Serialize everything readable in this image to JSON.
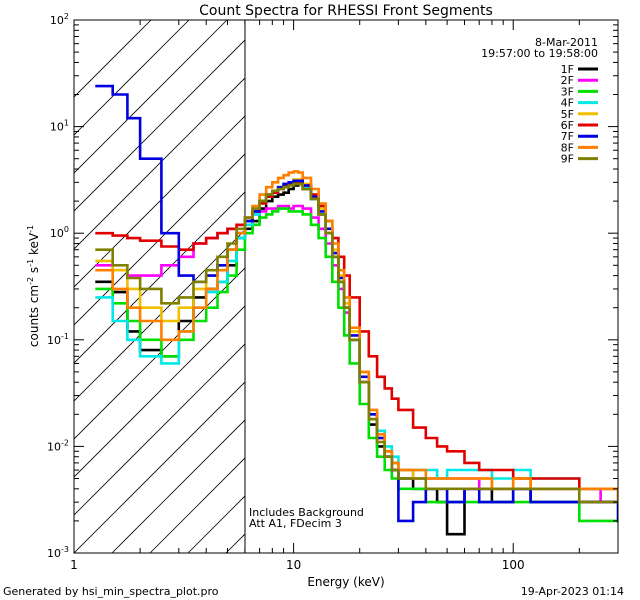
{
  "chart_data": {
    "type": "line",
    "title": "Count Spectra for RHESSI Front Segments",
    "xlabel": "Energy (keV)",
    "ylabel_parts": {
      "base": "counts cm",
      "exp1": "-2",
      "mid1": " s",
      "exp2": "-1",
      "mid2": " keV",
      "exp3": "-1"
    },
    "xscale": "log",
    "yscale": "log",
    "xlim": [
      1,
      300
    ],
    "ylim": [
      0.001,
      100
    ],
    "x_ticks": [
      {
        "value": 1,
        "label": "1"
      },
      {
        "value": 10,
        "label": "10"
      },
      {
        "value": 100,
        "label": "100"
      }
    ],
    "y_ticks": [
      {
        "value": 100,
        "base": "10",
        "exp": "2"
      },
      {
        "value": 10,
        "base": "10",
        "exp": "1"
      },
      {
        "value": 1,
        "base": "10",
        "exp": "0"
      },
      {
        "value": 0.1,
        "base": "10",
        "exp": "-1"
      },
      {
        "value": 0.01,
        "base": "10",
        "exp": "-2"
      },
      {
        "value": 0.001,
        "base": "10",
        "exp": "-3"
      }
    ],
    "legend": {
      "placement": "top-right",
      "date": "8-Mar-2011",
      "time_range": "19:57:00 to 19:58:00"
    },
    "annotations": {
      "line1": "Includes Background",
      "line2": "Att A1, FDecim  3"
    },
    "hatched_region": {
      "xmin": 1,
      "xmax": 6,
      "label": "excluded low-energy region"
    },
    "series": [
      {
        "name": "1F",
        "color": "#000000",
        "x": [
          1.25,
          1.5,
          1.75,
          2.0,
          2.5,
          3.0,
          3.5,
          4.0,
          4.5,
          5.0,
          5.5,
          6.0,
          6.5,
          7.0,
          7.5,
          8.0,
          8.5,
          9.0,
          9.5,
          10.0,
          10.5,
          11.0,
          12.0,
          13.0,
          14.0,
          15.0,
          16.0,
          17.0,
          18.0,
          20.0,
          22.0,
          24.0,
          26.0,
          28.0,
          30.0,
          35.0,
          40.0,
          45.0,
          50.0,
          60.0,
          70.0,
          80.0,
          100.0,
          120.0,
          150.0,
          200.0,
          250.0,
          300.0
        ],
        "values": [
          0.35,
          0.28,
          0.12,
          0.08,
          0.07,
          0.15,
          0.25,
          0.3,
          0.35,
          0.5,
          0.9,
          1.1,
          1.3,
          1.7,
          2.0,
          2.2,
          2.3,
          2.4,
          2.6,
          2.8,
          2.9,
          2.6,
          2.1,
          1.5,
          1.0,
          0.6,
          0.35,
          0.2,
          0.1,
          0.04,
          0.016,
          0.01,
          0.008,
          0.006,
          0.005,
          0.004,
          0.004,
          0.003,
          0.0015,
          0.004,
          0.004,
          0.003,
          0.004,
          0.003,
          0.003,
          0.003,
          0.003,
          0.003
        ]
      },
      {
        "name": "2F",
        "color": "#ff00ff",
        "x": [
          1.25,
          1.5,
          1.75,
          2.0,
          2.5,
          3.0,
          3.5,
          4.0,
          4.5,
          5.0,
          5.5,
          6.0,
          6.5,
          7.0,
          7.5,
          8.0,
          8.5,
          9.0,
          9.5,
          10.0,
          10.5,
          11.0,
          12.0,
          13.0,
          14.0,
          15.0,
          16.0,
          17.0,
          18.0,
          20.0,
          22.0,
          24.0,
          26.0,
          28.0,
          30.0,
          35.0,
          40.0,
          45.0,
          50.0,
          60.0,
          70.0,
          80.0,
          100.0,
          120.0,
          150.0,
          200.0,
          250.0,
          300.0
        ],
        "values": [
          0.5,
          0.45,
          0.4,
          0.4,
          0.5,
          0.6,
          0.8,
          0.9,
          1.0,
          1.1,
          1.2,
          1.3,
          1.5,
          1.6,
          1.7,
          1.7,
          1.8,
          1.8,
          1.7,
          1.8,
          1.8,
          1.7,
          1.4,
          1.1,
          0.8,
          0.5,
          0.3,
          0.18,
          0.1,
          0.04,
          0.018,
          0.012,
          0.009,
          0.007,
          0.006,
          0.005,
          0.005,
          0.005,
          0.005,
          0.005,
          0.004,
          0.004,
          0.004,
          0.004,
          0.004,
          0.004,
          0.003,
          0.003
        ]
      },
      {
        "name": "3F",
        "color": "#00e000",
        "x": [
          1.25,
          1.5,
          1.75,
          2.0,
          2.5,
          3.0,
          3.5,
          4.0,
          4.5,
          5.0,
          5.5,
          6.0,
          6.5,
          7.0,
          7.5,
          8.0,
          8.5,
          9.0,
          9.5,
          10.0,
          10.5,
          11.0,
          12.0,
          13.0,
          14.0,
          15.0,
          16.0,
          17.0,
          18.0,
          20.0,
          22.0,
          24.0,
          26.0,
          28.0,
          30.0,
          35.0,
          40.0,
          45.0,
          50.0,
          60.0,
          70.0,
          80.0,
          100.0,
          120.0,
          150.0,
          200.0,
          250.0,
          300.0
        ],
        "values": [
          0.3,
          0.22,
          0.15,
          0.1,
          0.07,
          0.1,
          0.15,
          0.2,
          0.28,
          0.4,
          0.7,
          1.0,
          1.2,
          1.4,
          1.5,
          1.6,
          1.7,
          1.7,
          1.6,
          1.6,
          1.6,
          1.5,
          1.2,
          0.9,
          0.6,
          0.35,
          0.2,
          0.11,
          0.06,
          0.025,
          0.012,
          0.008,
          0.006,
          0.005,
          0.004,
          0.004,
          0.003,
          0.003,
          0.003,
          0.003,
          0.003,
          0.003,
          0.003,
          0.003,
          0.003,
          0.002,
          0.002,
          0.002
        ]
      },
      {
        "name": "4F",
        "color": "#00e8e8",
        "x": [
          1.25,
          1.5,
          1.75,
          2.0,
          2.5,
          3.0,
          3.5,
          4.0,
          4.5,
          5.0,
          5.5,
          6.0,
          6.5,
          7.0,
          7.5,
          8.0,
          8.5,
          9.0,
          9.5,
          10.0,
          10.5,
          11.0,
          12.0,
          13.0,
          14.0,
          15.0,
          16.0,
          17.0,
          18.0,
          20.0,
          22.0,
          24.0,
          26.0,
          28.0,
          30.0,
          35.0,
          40.0,
          45.0,
          50.0,
          60.0,
          70.0,
          80.0,
          100.0,
          120.0,
          150.0,
          200.0,
          250.0,
          300.0
        ],
        "values": [
          0.25,
          0.15,
          0.1,
          0.07,
          0.06,
          0.12,
          0.2,
          0.28,
          0.35,
          0.55,
          0.9,
          1.2,
          1.5,
          1.9,
          2.2,
          2.4,
          2.6,
          2.8,
          2.9,
          3.0,
          3.0,
          2.7,
          2.1,
          1.5,
          1.0,
          0.6,
          0.35,
          0.2,
          0.1,
          0.04,
          0.02,
          0.014,
          0.01,
          0.008,
          0.006,
          0.006,
          0.006,
          0.005,
          0.006,
          0.006,
          0.006,
          0.005,
          0.006,
          0.005,
          0.005,
          0.004,
          0.004,
          0.004
        ]
      },
      {
        "name": "5F",
        "color": "#f0c000",
        "x": [
          1.25,
          1.5,
          1.75,
          2.0,
          2.5,
          3.0,
          3.5,
          4.0,
          4.5,
          5.0,
          5.5,
          6.0,
          6.5,
          7.0,
          7.5,
          8.0,
          8.5,
          9.0,
          9.5,
          10.0,
          10.5,
          11.0,
          12.0,
          13.0,
          14.0,
          15.0,
          16.0,
          17.0,
          18.0,
          20.0,
          22.0,
          24.0,
          26.0,
          28.0,
          30.0,
          35.0,
          40.0,
          45.0,
          50.0,
          60.0,
          70.0,
          80.0,
          100.0,
          120.0,
          150.0,
          200.0,
          250.0,
          300.0
        ],
        "values": [
          0.55,
          0.45,
          0.3,
          0.2,
          0.15,
          0.2,
          0.3,
          0.4,
          0.5,
          0.7,
          1.0,
          1.3,
          1.6,
          2.0,
          2.3,
          2.5,
          2.7,
          2.9,
          3.0,
          3.2,
          3.2,
          2.9,
          2.3,
          1.7,
          1.1,
          0.7,
          0.4,
          0.22,
          0.12,
          0.05,
          0.02,
          0.012,
          0.009,
          0.007,
          0.006,
          0.005,
          0.005,
          0.005,
          0.005,
          0.005,
          0.005,
          0.004,
          0.005,
          0.004,
          0.004,
          0.004,
          0.004,
          0.003
        ]
      },
      {
        "name": "6F",
        "color": "#e00000",
        "x": [
          1.25,
          1.5,
          1.75,
          2.0,
          2.5,
          3.0,
          3.5,
          4.0,
          4.5,
          5.0,
          5.5,
          6.0,
          6.5,
          7.0,
          7.5,
          8.0,
          8.5,
          9.0,
          9.5,
          10.0,
          10.5,
          11.0,
          12.0,
          13.0,
          14.0,
          15.0,
          16.0,
          17.0,
          18.0,
          20.0,
          22.0,
          24.0,
          26.0,
          28.0,
          30.0,
          35.0,
          40.0,
          45.0,
          50.0,
          60.0,
          70.0,
          80.0,
          100.0,
          120.0,
          150.0,
          200.0,
          250.0,
          300.0
        ],
        "values": [
          1.0,
          0.95,
          0.9,
          0.85,
          0.75,
          0.7,
          0.8,
          0.9,
          1.0,
          1.1,
          1.2,
          1.3,
          1.6,
          1.9,
          2.2,
          2.4,
          2.6,
          2.8,
          2.9,
          3.0,
          3.0,
          2.8,
          2.3,
          1.8,
          1.3,
          0.9,
          0.6,
          0.4,
          0.25,
          0.12,
          0.07,
          0.045,
          0.035,
          0.028,
          0.022,
          0.015,
          0.012,
          0.01,
          0.009,
          0.007,
          0.006,
          0.006,
          0.005,
          0.005,
          0.005,
          0.004,
          0.004,
          0.004
        ]
      },
      {
        "name": "7F",
        "color": "#0000e0",
        "x": [
          1.25,
          1.5,
          1.75,
          2.0,
          2.5,
          3.0,
          3.5,
          4.0,
          4.5,
          5.0,
          5.5,
          6.0,
          6.5,
          7.0,
          7.5,
          8.0,
          8.5,
          9.0,
          9.5,
          10.0,
          10.5,
          11.0,
          12.0,
          13.0,
          14.0,
          15.0,
          16.0,
          17.0,
          18.0,
          20.0,
          22.0,
          24.0,
          26.0,
          28.0,
          30.0,
          35.0,
          40.0,
          45.0,
          50.0,
          60.0,
          70.0,
          80.0,
          100.0,
          120.0,
          150.0,
          200.0,
          250.0,
          300.0
        ],
        "values": [
          24,
          20,
          12,
          5.0,
          1.0,
          0.4,
          0.35,
          0.4,
          0.5,
          0.7,
          1.0,
          1.3,
          1.6,
          2.0,
          2.3,
          2.5,
          2.7,
          2.9,
          3.0,
          3.1,
          3.1,
          2.8,
          2.2,
          1.6,
          1.1,
          0.65,
          0.38,
          0.2,
          0.11,
          0.045,
          0.02,
          0.012,
          0.008,
          0.006,
          0.002,
          0.003,
          0.004,
          0.004,
          0.003,
          0.004,
          0.003,
          0.003,
          0.004,
          0.003,
          0.003,
          0.003,
          0.003,
          0.002
        ]
      },
      {
        "name": "8F",
        "color": "#ff8000",
        "x": [
          1.25,
          1.5,
          1.75,
          2.0,
          2.5,
          3.0,
          3.5,
          4.0,
          4.5,
          5.0,
          5.5,
          6.0,
          6.5,
          7.0,
          7.5,
          8.0,
          8.5,
          9.0,
          9.5,
          10.0,
          10.5,
          11.0,
          12.0,
          13.0,
          14.0,
          15.0,
          16.0,
          17.0,
          18.0,
          20.0,
          22.0,
          24.0,
          26.0,
          28.0,
          30.0,
          35.0,
          40.0,
          45.0,
          50.0,
          60.0,
          70.0,
          80.0,
          100.0,
          120.0,
          150.0,
          200.0,
          250.0,
          300.0
        ],
        "values": [
          0.45,
          0.3,
          0.2,
          0.15,
          0.1,
          0.12,
          0.2,
          0.3,
          0.45,
          0.7,
          1.0,
          1.4,
          1.8,
          2.3,
          2.7,
          3.0,
          3.3,
          3.5,
          3.7,
          3.8,
          3.7,
          3.3,
          2.6,
          1.9,
          1.3,
          0.8,
          0.45,
          0.25,
          0.13,
          0.05,
          0.022,
          0.013,
          0.009,
          0.007,
          0.006,
          0.006,
          0.005,
          0.005,
          0.005,
          0.005,
          0.005,
          0.004,
          0.005,
          0.004,
          0.004,
          0.004,
          0.004,
          0.003
        ]
      },
      {
        "name": "9F",
        "color": "#808000",
        "x": [
          1.25,
          1.5,
          1.75,
          2.0,
          2.5,
          3.0,
          3.5,
          4.0,
          4.5,
          5.0,
          5.5,
          6.0,
          6.5,
          7.0,
          7.5,
          8.0,
          8.5,
          9.0,
          9.5,
          10.0,
          10.5,
          11.0,
          12.0,
          13.0,
          14.0,
          15.0,
          16.0,
          17.0,
          18.0,
          20.0,
          22.0,
          24.0,
          26.0,
          28.0,
          30.0,
          35.0,
          40.0,
          45.0,
          50.0,
          60.0,
          70.0,
          80.0,
          100.0,
          120.0,
          150.0,
          200.0,
          250.0,
          300.0
        ],
        "values": [
          0.7,
          0.5,
          0.38,
          0.3,
          0.22,
          0.25,
          0.35,
          0.45,
          0.6,
          0.8,
          1.1,
          1.4,
          1.7,
          2.0,
          2.3,
          2.5,
          2.6,
          2.7,
          2.8,
          2.9,
          2.9,
          2.6,
          2.1,
          1.5,
          1.0,
          0.6,
          0.35,
          0.2,
          0.1,
          0.04,
          0.018,
          0.011,
          0.008,
          0.006,
          0.005,
          0.005,
          0.004,
          0.004,
          0.004,
          0.004,
          0.004,
          0.004,
          0.004,
          0.004,
          0.004,
          0.003,
          0.003,
          0.003
        ]
      }
    ]
  },
  "footer": {
    "generated_by": "Generated by hsi_min_spectra_plot.pro",
    "timestamp": "19-Apr-2023 01:14"
  }
}
